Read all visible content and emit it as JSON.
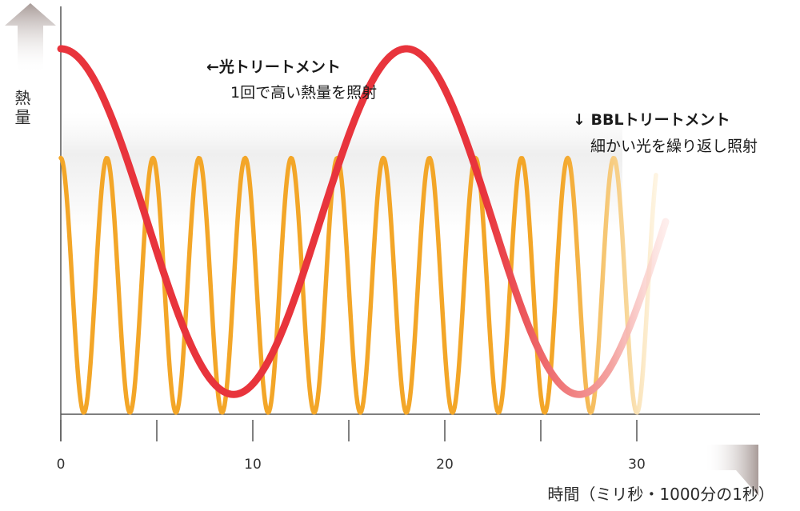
{
  "chart_data": {
    "type": "line",
    "xlabel": "時間（ミリ秒・1000分の1秒）",
    "ylabel": "熱量",
    "xlim": [
      0,
      37
    ],
    "ylim": [
      0,
      1
    ],
    "x_ticks": [
      0,
      10,
      20,
      30
    ],
    "x_minor_ticks": [
      5,
      15,
      25
    ],
    "grid": false,
    "series": [
      {
        "name": "光トリートメント",
        "color": "#e8343c",
        "period": 18,
        "phase": -0.5,
        "amplitude": 0.5,
        "offset": 0.5,
        "x_range": [
          0,
          31.5
        ],
        "y_min": 0.05,
        "y_max": 1.0,
        "fade_start_x": 22
      },
      {
        "name": "BBLトリートメント",
        "color": "#f3a628",
        "period": 2.4,
        "phase": -0.5,
        "amplitude": 0.5,
        "offset": 0.5,
        "x_range": [
          0,
          31
        ],
        "y_min": 0.0,
        "y_max": 0.7,
        "fade_start_x": 26
      }
    ],
    "annotations": [
      {
        "title": "←光トリートメント",
        "text": "1回で高い熱量を照射",
        "series": 0
      },
      {
        "title": "↓ BBLトリートメント",
        "text": "細かい光を繰り返し照射",
        "series": 1
      }
    ]
  }
}
